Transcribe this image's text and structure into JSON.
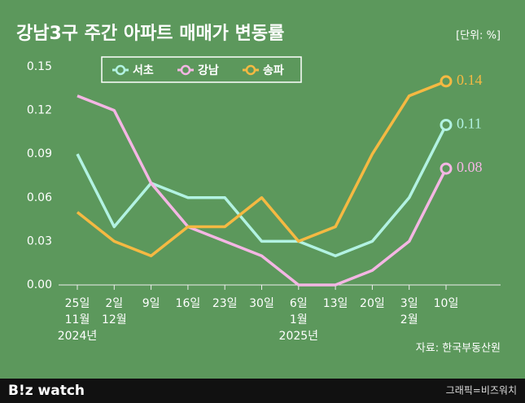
{
  "chart_data": {
    "type": "line",
    "title": "강남3구 주간 아파트 매매가 변동률",
    "unit_note": "[단위: %]",
    "source": "자료: 한국부동산원",
    "brand": "B!z watch",
    "credit": "그래픽=비즈워치",
    "categories": [
      "25일",
      "2일",
      "9일",
      "16일",
      "23일",
      "30일",
      "6일",
      "13일",
      "20일",
      "3일",
      "10일"
    ],
    "category_months": [
      "11월",
      "12월",
      null,
      null,
      null,
      null,
      "1월",
      null,
      null,
      "2월",
      null
    ],
    "category_years": [
      "2024년",
      null,
      null,
      null,
      null,
      null,
      "2025년",
      null,
      null,
      null,
      null
    ],
    "series": [
      {
        "name": "서초",
        "color": "#b2f2e2",
        "values": [
          0.09,
          0.04,
          0.07,
          0.06,
          0.06,
          0.03,
          0.03,
          0.02,
          0.03,
          0.06,
          0.11
        ]
      },
      {
        "name": "강남",
        "color": "#f4b6e4",
        "values": [
          0.13,
          0.12,
          0.07,
          0.04,
          0.03,
          0.02,
          0,
          0,
          0.01,
          0.03,
          0.08
        ]
      },
      {
        "name": "송파",
        "color": "#f5b942",
        "values": [
          0.05,
          0.03,
          0.02,
          0.04,
          0.04,
          0.06,
          0.03,
          0.04,
          0.09,
          0.13,
          0.14
        ]
      }
    ],
    "ylim": [
      0,
      0.15
    ],
    "yticks": [
      {
        "value": 0,
        "label": "0.00"
      },
      0.03,
      0.06,
      0.09,
      0.12,
      0.15
    ]
  }
}
